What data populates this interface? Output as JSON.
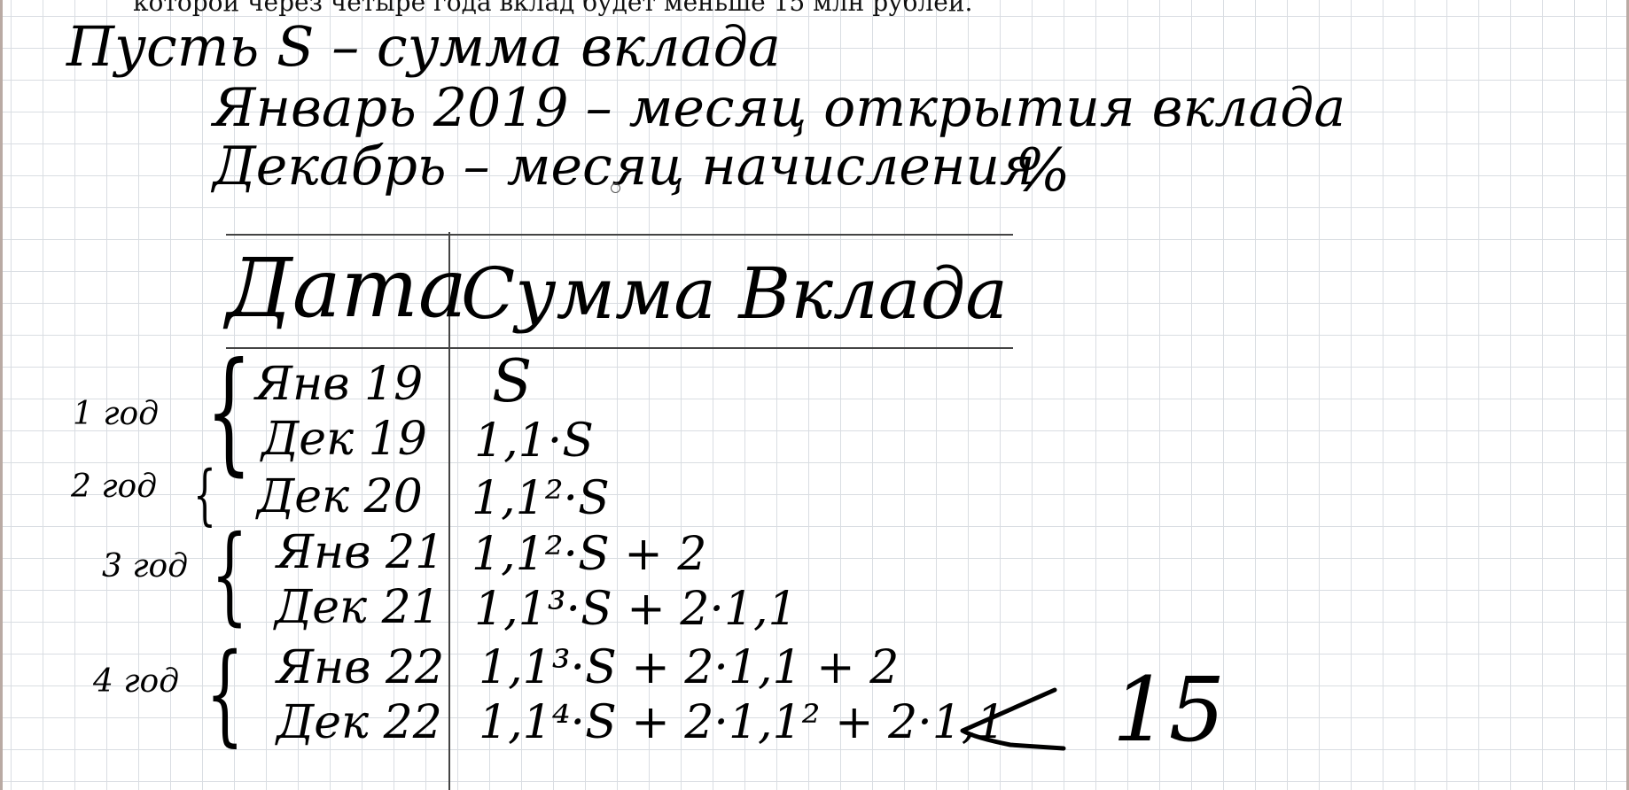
{
  "cutoff_text": "которой через четыре года вклад будет меньше 15 млн рублей.",
  "intro": {
    "line1": "Пусть  S – сумма вклада",
    "line2": "Январь 2019 – месяц открытия вклада",
    "line3": "Декабрь  – месяц начисления",
    "percent": "%"
  },
  "table": {
    "header_date": "Дата",
    "header_sum": "Сумма Вклада",
    "rows": [
      {
        "date": "Янв 19",
        "sum": "S"
      },
      {
        "date": "Дек 19",
        "sum": "1,1·S"
      },
      {
        "date": "Дек 20",
        "sum": "1,1²·S"
      },
      {
        "date": "Янв 21",
        "sum": "1,1²·S  + 2"
      },
      {
        "date": "Дек 21",
        "sum": "1,1³·S  + 2·1,1"
      },
      {
        "date": "Янв 22",
        "sum": "1,1³·S + 2·1,1 + 2"
      },
      {
        "date": "Дек 22",
        "sum": "1,1⁴·S + 2·1,1² + 2·1,1"
      }
    ]
  },
  "years": [
    {
      "label": "1 год"
    },
    {
      "label": "2 год"
    },
    {
      "label": "3 год"
    },
    {
      "label": "4 год"
    }
  ],
  "result": {
    "value": "15"
  }
}
